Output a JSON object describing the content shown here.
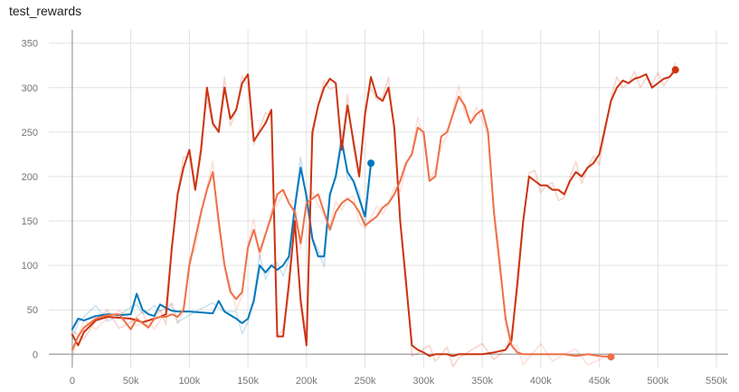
{
  "chart_data": {
    "type": "line",
    "title": "test_rewards",
    "xlabel": "",
    "ylabel": "",
    "xlim": [
      -20000,
      560000
    ],
    "ylim": [
      -15,
      365
    ],
    "x_ticks": [
      0,
      50000,
      100000,
      150000,
      200000,
      250000,
      300000,
      350000,
      400000,
      450000,
      500000,
      550000
    ],
    "x_tick_labels": [
      "0",
      "50k",
      "100k",
      "150k",
      "200k",
      "250k",
      "300k",
      "350k",
      "400k",
      "450k",
      "500k",
      "550k"
    ],
    "y_ticks": [
      0,
      50,
      100,
      150,
      200,
      250,
      300,
      350
    ],
    "y_tick_labels": [
      "0",
      "50",
      "100",
      "150",
      "200",
      "250",
      "300",
      "350"
    ],
    "grid": true,
    "colors": {
      "series_a": "#0077bb",
      "series_b": "#cc3311",
      "series_c": "#ee7047",
      "axis": "#9e9e9e",
      "grid": "#e0e0e0"
    },
    "series": [
      {
        "color": "#0077bb",
        "x": [
          0,
          5000,
          10000,
          20000,
          30000,
          40000,
          50000,
          55000,
          60000,
          65000,
          70000,
          75000,
          80000,
          85000,
          90000,
          100000,
          110000,
          120000,
          125000,
          130000,
          140000,
          145000,
          150000,
          155000,
          160000,
          165000,
          170000,
          175000,
          180000,
          185000,
          190000,
          195000,
          200000,
          205000,
          210000,
          215000,
          220000,
          225000,
          230000,
          235000,
          240000,
          245000,
          250000,
          255000
        ],
        "y": [
          28,
          40,
          38,
          43,
          45,
          44,
          45,
          68,
          50,
          45,
          43,
          56,
          52,
          49,
          48,
          48,
          47,
          46,
          60,
          48,
          40,
          35,
          40,
          60,
          100,
          92,
          100,
          95,
          100,
          110,
          165,
          210,
          178,
          130,
          110,
          110,
          180,
          200,
          240,
          205,
          195,
          175,
          155,
          215
        ]
      },
      {
        "color": "#cc3311",
        "x": [
          0,
          5000,
          10000,
          20000,
          30000,
          40000,
          50000,
          55000,
          60000,
          65000,
          70000,
          75000,
          80000,
          85000,
          90000,
          95000,
          100000,
          105000,
          110000,
          115000,
          120000,
          125000,
          130000,
          135000,
          140000,
          145000,
          150000,
          155000,
          160000,
          165000,
          170000,
          175000,
          180000,
          185000,
          190000,
          195000,
          200000,
          205000,
          210000,
          215000,
          220000,
          225000,
          230000,
          235000,
          240000,
          245000,
          250000,
          255000,
          260000,
          265000,
          270000,
          275000,
          280000,
          285000,
          290000,
          295000,
          300000,
          305000,
          310000,
          315000,
          320000,
          325000,
          330000,
          340000,
          350000,
          360000,
          370000,
          375000,
          380000,
          385000,
          390000,
          395000,
          400000,
          405000,
          410000,
          415000,
          420000,
          425000,
          430000,
          435000,
          440000,
          445000,
          450000,
          455000,
          460000,
          465000,
          470000,
          475000,
          480000,
          485000,
          490000,
          495000,
          500000,
          505000,
          510000,
          515000
        ],
        "y": [
          22,
          10,
          25,
          38,
          42,
          41,
          40,
          38,
          36,
          38,
          40,
          42,
          45,
          120,
          180,
          210,
          230,
          185,
          230,
          300,
          260,
          250,
          300,
          265,
          275,
          305,
          315,
          240,
          250,
          260,
          275,
          20,
          20,
          80,
          150,
          60,
          10,
          250,
          280,
          300,
          310,
          305,
          230,
          280,
          240,
          200,
          270,
          312,
          290,
          285,
          300,
          255,
          150,
          80,
          10,
          5,
          2,
          -2,
          0,
          0,
          0,
          -2,
          0,
          0,
          0,
          2,
          5,
          15,
          80,
          150,
          200,
          195,
          190,
          190,
          185,
          185,
          180,
          195,
          205,
          200,
          210,
          215,
          225,
          255,
          285,
          300,
          308,
          305,
          310,
          312,
          315,
          300,
          305,
          310,
          312,
          320
        ]
      },
      {
        "color": "#ee7047",
        "x": [
          0,
          5000,
          10000,
          20000,
          30000,
          40000,
          50000,
          55000,
          60000,
          65000,
          70000,
          75000,
          80000,
          85000,
          90000,
          95000,
          100000,
          105000,
          110000,
          115000,
          120000,
          125000,
          130000,
          135000,
          140000,
          145000,
          150000,
          155000,
          160000,
          165000,
          170000,
          175000,
          180000,
          185000,
          190000,
          195000,
          200000,
          205000,
          210000,
          215000,
          220000,
          225000,
          230000,
          235000,
          240000,
          245000,
          250000,
          255000,
          260000,
          265000,
          270000,
          275000,
          280000,
          285000,
          290000,
          295000,
          300000,
          305000,
          310000,
          315000,
          320000,
          325000,
          330000,
          335000,
          340000,
          345000,
          350000,
          355000,
          360000,
          365000,
          370000,
          375000,
          380000,
          385000,
          390000,
          395000,
          400000,
          410000,
          420000,
          430000,
          440000,
          450000,
          460000
        ],
        "y": [
          5,
          20,
          30,
          40,
          44,
          45,
          28,
          40,
          35,
          30,
          40,
          42,
          42,
          45,
          42,
          50,
          100,
          130,
          160,
          185,
          205,
          150,
          100,
          70,
          62,
          70,
          120,
          140,
          115,
          135,
          155,
          180,
          185,
          170,
          160,
          125,
          170,
          175,
          180,
          160,
          140,
          160,
          170,
          175,
          170,
          160,
          145,
          150,
          155,
          165,
          170,
          180,
          195,
          215,
          225,
          255,
          250,
          195,
          200,
          245,
          250,
          270,
          290,
          280,
          260,
          270,
          275,
          250,
          160,
          100,
          40,
          10,
          2,
          0,
          0,
          0,
          0,
          0,
          0,
          -2,
          0,
          -2,
          -3
        ]
      }
    ]
  }
}
